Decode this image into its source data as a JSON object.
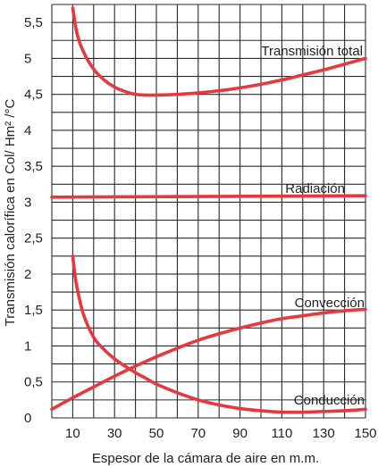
{
  "chart_data": {
    "type": "line",
    "xlabel": "Espesor de la cámara de aire en m.m.",
    "ylabel": "Transmisión calorífica en Col/ Hm² /°C",
    "xlim": [
      0,
      150
    ],
    "ylim": [
      0,
      5.75
    ],
    "x_ticks": [
      10,
      30,
      50,
      70,
      90,
      110,
      130,
      150
    ],
    "x_tick_labels": [
      "10",
      "30",
      "50",
      "70",
      "90",
      "110",
      "130",
      "150"
    ],
    "y_ticks": [
      0,
      0.5,
      1,
      1.5,
      2,
      2.5,
      3,
      3.5,
      4,
      4.5,
      5,
      5.5
    ],
    "y_tick_labels": [
      "0",
      "0,5",
      "1",
      "1,5",
      "2",
      "2,5",
      "3",
      "3,5",
      "4",
      "4,5",
      "5",
      "5,5"
    ],
    "grid": true,
    "line_color": "#e8383d",
    "series": [
      {
        "name": "Transmisión total",
        "x": [
          10,
          12,
          15,
          20,
          25,
          30,
          35,
          40,
          45,
          50,
          60,
          70,
          80,
          90,
          100,
          110,
          120,
          130,
          140,
          150
        ],
        "y": [
          5.7,
          5.35,
          5.1,
          4.85,
          4.7,
          4.6,
          4.54,
          4.5,
          4.49,
          4.49,
          4.5,
          4.52,
          4.55,
          4.59,
          4.64,
          4.7,
          4.77,
          4.84,
          4.92,
          5.0
        ]
      },
      {
        "name": "Radiación",
        "x": [
          0,
          150
        ],
        "y": [
          3.07,
          3.09
        ]
      },
      {
        "name": "Convección",
        "x": [
          0,
          10,
          20,
          30,
          40,
          50,
          60,
          70,
          80,
          90,
          100,
          110,
          120,
          130,
          140,
          150
        ],
        "y": [
          0.12,
          0.28,
          0.43,
          0.58,
          0.72,
          0.85,
          0.97,
          1.08,
          1.17,
          1.25,
          1.32,
          1.38,
          1.42,
          1.46,
          1.49,
          1.51
        ]
      },
      {
        "name": "Conducción",
        "x": [
          10,
          11,
          12,
          15,
          20,
          25,
          30,
          35,
          40,
          45,
          50,
          60,
          70,
          80,
          90,
          100,
          110,
          120,
          130,
          140,
          150
        ],
        "y": [
          2.25,
          2.0,
          1.82,
          1.45,
          1.12,
          0.95,
          0.82,
          0.72,
          0.63,
          0.55,
          0.47,
          0.35,
          0.25,
          0.18,
          0.13,
          0.1,
          0.08,
          0.08,
          0.09,
          0.1,
          0.12
        ]
      }
    ]
  }
}
